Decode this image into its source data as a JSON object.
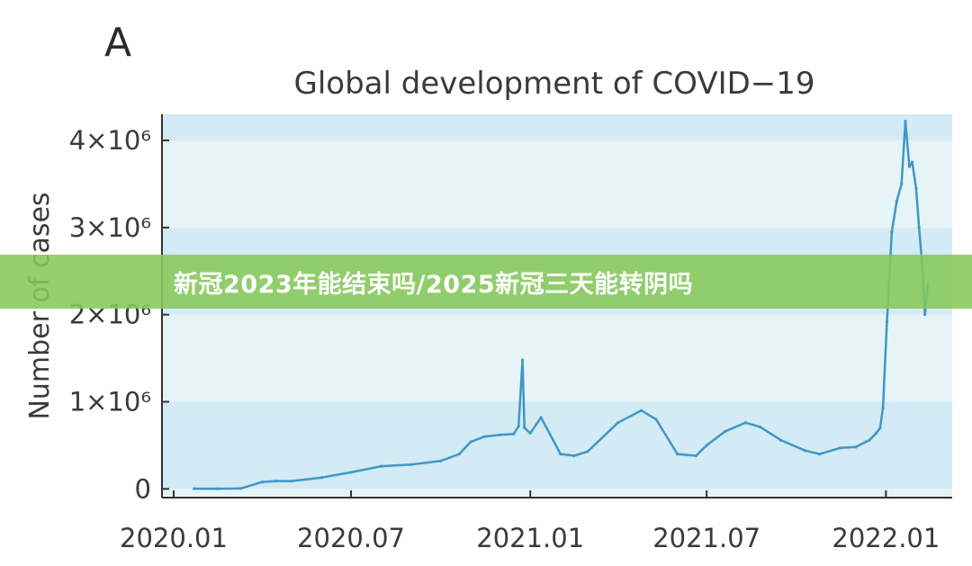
{
  "panel_label": "A",
  "overlay_text": "新冠2023年能结束吗/2025新冠三天能转阴吗",
  "colors": {
    "line": "#3f97c8",
    "band_dark": "#d3ebf4",
    "band_light": "#e6f4f8",
    "axis": "#333333",
    "overlay": "#87c85a"
  },
  "chart_data": {
    "type": "line",
    "title": "Global development of COVID−19",
    "xlabel": "",
    "ylabel": "Number of cases",
    "x_range": [
      "2019-12-20",
      "2022-03-10"
    ],
    "xticks": [
      {
        "date": "2020-01-01",
        "label": "2020.01"
      },
      {
        "date": "2020-07-01",
        "label": "2020.07"
      },
      {
        "date": "2021-01-01",
        "label": "2021.01"
      },
      {
        "date": "2021-07-01",
        "label": "2021.07"
      },
      {
        "date": "2022-01-01",
        "label": "2022.01"
      }
    ],
    "ylim": [
      -100000,
      4300000
    ],
    "yticks": [
      {
        "value": 0,
        "label": "0"
      },
      {
        "value": 1000000,
        "label": "1×10⁶"
      },
      {
        "value": 2000000,
        "label": "2×10⁶"
      },
      {
        "value": 3000000,
        "label": "3×10⁶"
      },
      {
        "value": 4000000,
        "label": "4×10⁶"
      }
    ],
    "grid": "horizontal bands",
    "series": [
      {
        "name": "",
        "x": [
          "2020-01-22",
          "2020-02-15",
          "2020-03-10",
          "2020-04-01",
          "2020-04-15",
          "2020-05-01",
          "2020-06-01",
          "2020-07-01",
          "2020-08-01",
          "2020-09-01",
          "2020-10-01",
          "2020-10-20",
          "2020-11-01",
          "2020-11-15",
          "2020-12-01",
          "2020-12-15",
          "2020-12-20",
          "2020-12-24",
          "2020-12-26",
          "2021-01-01",
          "2021-01-12",
          "2021-02-01",
          "2021-02-15",
          "2021-03-01",
          "2021-04-01",
          "2021-04-25",
          "2021-05-10",
          "2021-06-01",
          "2021-06-20",
          "2021-07-01",
          "2021-07-20",
          "2021-08-10",
          "2021-08-25",
          "2021-09-15",
          "2021-10-10",
          "2021-10-25",
          "2021-11-15",
          "2021-12-01",
          "2021-12-15",
          "2021-12-22",
          "2021-12-26",
          "2021-12-29",
          "2022-01-02",
          "2022-01-07",
          "2022-01-12",
          "2022-01-17",
          "2022-01-21",
          "2022-01-25",
          "2022-01-28",
          "2022-02-01",
          "2022-02-04",
          "2022-02-07",
          "2022-02-10",
          "2022-02-13"
        ],
        "values": [
          2000,
          2000,
          5000,
          80000,
          90000,
          90000,
          130000,
          190000,
          260000,
          280000,
          320000,
          400000,
          540000,
          600000,
          620000,
          630000,
          720000,
          1480000,
          700000,
          640000,
          820000,
          400000,
          380000,
          430000,
          760000,
          900000,
          800000,
          400000,
          380000,
          500000,
          660000,
          760000,
          710000,
          560000,
          440000,
          400000,
          470000,
          480000,
          560000,
          640000,
          700000,
          930000,
          1920000,
          2950000,
          3300000,
          3500000,
          4220000,
          3700000,
          3750000,
          3450000,
          3000000,
          2600000,
          2000000,
          2350000
        ]
      }
    ]
  }
}
